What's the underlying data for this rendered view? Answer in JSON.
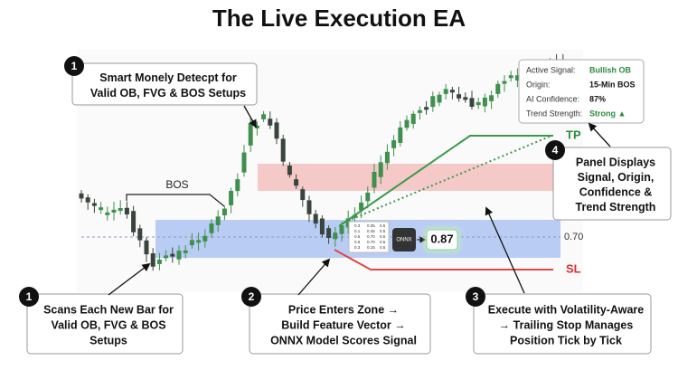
{
  "title": "The Live Execution EA",
  "chart": {
    "bos_label": "BOS",
    "tp_label": "TP",
    "sl_label": "SL",
    "zone_level": "0.70",
    "model_label": "ONNX",
    "model_score": "0.87",
    "feature_vector": [
      [
        "0.3",
        "0.35",
        "0.5"
      ],
      [
        "0.1",
        "0.45",
        "0.5"
      ],
      [
        "0.5",
        "0.70",
        "0.5"
      ],
      [
        "0.5",
        "0.70",
        "0.5"
      ],
      [
        "0.3",
        "0.15",
        "0.5"
      ]
    ]
  },
  "panel": {
    "rows": [
      {
        "label": "Active Signal:",
        "value": "Bullish OB"
      },
      {
        "label": "Origin:",
        "value": "15-Min BOS"
      },
      {
        "label": "AI Confidence:",
        "value": "87%"
      },
      {
        "label": "Trend Strength:",
        "value": "Strong ▲"
      }
    ]
  },
  "callouts": [
    {
      "number": "1",
      "lines": [
        "Smart Monely Detecpt for",
        "Valid OB, FVG & BOS Setups"
      ]
    },
    {
      "number": "1",
      "lines": [
        "Scans Each New Bar for",
        "Valid OB, FVG & BOS",
        "Setups"
      ]
    },
    {
      "number": "2",
      "lines": [
        "Price Enters Zone →",
        "Build Feature Vector →",
        "ONNX Model Scores Signal"
      ]
    },
    {
      "number": "3",
      "lines": [
        "Execute with Volatility-Aware",
        "→ Trailing Stop Manages",
        "Position Tick by Tick"
      ]
    },
    {
      "number": "4",
      "lines": [
        "Panel Displays",
        "Signal, Origin,",
        "Confidence &",
        "Trend Strength"
      ]
    }
  ]
}
